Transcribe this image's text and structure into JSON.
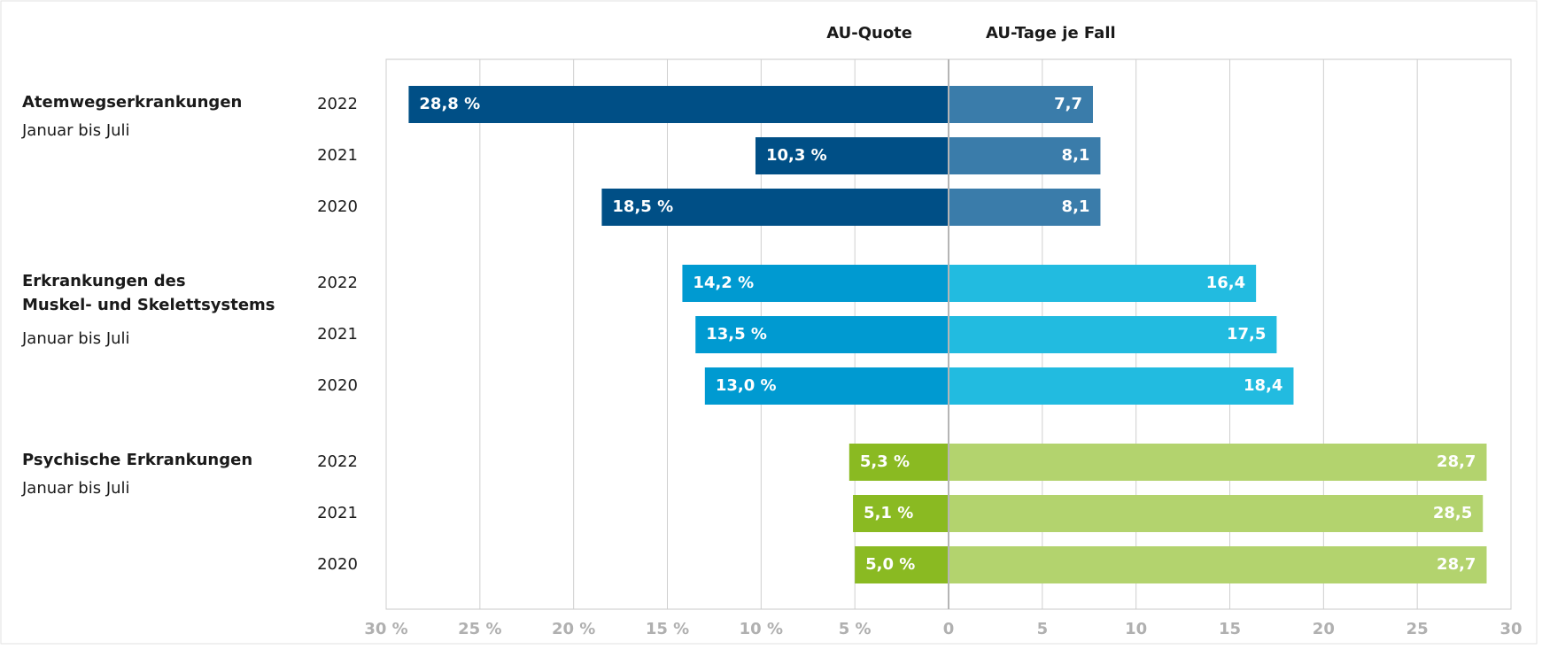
{
  "chart_data": {
    "type": "butterfly",
    "left_title": "AU-Quote",
    "right_title": "AU-Tage je Fall",
    "xlim_left": [
      0,
      30
    ],
    "xlim_right": [
      0,
      30
    ],
    "xticks_left": [
      {
        "value": 30,
        "label": "30 %"
      },
      {
        "value": 25,
        "label": "25 %"
      },
      {
        "value": 20,
        "label": "20 %"
      },
      {
        "value": 15,
        "label": "15 %"
      },
      {
        "value": 10,
        "label": "10 %"
      },
      {
        "value": 5,
        "label": "5 %"
      }
    ],
    "xticks_right": [
      0,
      5,
      10,
      15,
      20,
      25,
      30
    ],
    "grid": true,
    "groups": [
      {
        "name": [
          "Atemwegserkrankungen"
        ],
        "subtitle": "Januar bis Juli",
        "categories": [
          "2022",
          "2021",
          "2020"
        ],
        "left_values": [
          28.8,
          10.3,
          18.5
        ],
        "left_value_labels": [
          "28,8 %",
          "10,3 %",
          "18,5 %"
        ],
        "right_values": [
          7.7,
          8.1,
          8.1
        ],
        "right_value_labels": [
          "7,7",
          "8,1",
          "8,1"
        ],
        "left_color": "#004f86",
        "right_color": "#3a7caa"
      },
      {
        "name": [
          "Erkrankungen des",
          "Muskel- und Skelettsystems"
        ],
        "subtitle": "Januar bis Juli",
        "categories": [
          "2022",
          "2021",
          "2020"
        ],
        "left_values": [
          14.2,
          13.5,
          13.0
        ],
        "left_value_labels": [
          "14,2 %",
          "13,5 %",
          "13,0 %"
        ],
        "right_values": [
          16.4,
          17.5,
          18.4
        ],
        "right_value_labels": [
          "16,4",
          "17,5",
          "18,4"
        ],
        "left_color": "#009ad1",
        "right_color": "#22bbe0"
      },
      {
        "name": [
          "Psychische Erkrankungen"
        ],
        "subtitle": "Januar bis Juli",
        "categories": [
          "2022",
          "2021",
          "2020"
        ],
        "left_values": [
          5.3,
          5.1,
          5.0
        ],
        "left_value_labels": [
          "5,3 %",
          "5,1 %",
          "5,0 %"
        ],
        "right_values": [
          28.7,
          28.5,
          28.7
        ],
        "right_value_labels": [
          "28,7",
          "28,5",
          "28,7"
        ],
        "left_color": "#8aba22",
        "right_color": "#b3d36e"
      }
    ]
  }
}
